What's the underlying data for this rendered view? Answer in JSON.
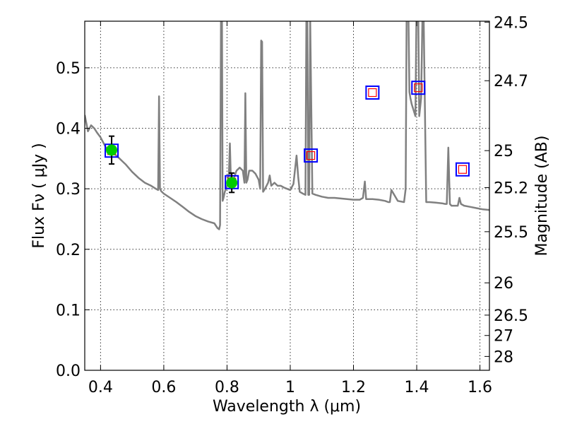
{
  "chart_data": {
    "type": "line",
    "xlabel": "Wavelength  λ (μm)",
    "ylabel": "Flux  Fν  ( μJy )",
    "y2label": "Magnitude (AB)",
    "xlim": [
      0.35,
      1.63
    ],
    "ylim": [
      0.0,
      0.577
    ],
    "grid": true,
    "x_ticks": [
      {
        "value": 0.4,
        "label": "0.4"
      },
      {
        "value": 0.6,
        "label": "0.6"
      },
      {
        "value": 0.8,
        "label": "0.8"
      },
      {
        "value": 1.0,
        "label": "1"
      },
      {
        "value": 1.2,
        "label": "1.2"
      },
      {
        "value": 1.4,
        "label": "1.4"
      },
      {
        "value": 1.6,
        "label": "1.6"
      }
    ],
    "y_ticks": [
      {
        "value": 0.0,
        "label": "0.0"
      },
      {
        "value": 0.1,
        "label": "0.1"
      },
      {
        "value": 0.2,
        "label": "0.2"
      },
      {
        "value": 0.3,
        "label": "0.3"
      },
      {
        "value": 0.4,
        "label": "0.4"
      },
      {
        "value": 0.5,
        "label": "0.5"
      }
    ],
    "mag_ticks": [
      {
        "value": 24.5,
        "label": "24.5"
      },
      {
        "value": 24.7,
        "label": "24.7"
      },
      {
        "value": 25.0,
        "label": "25"
      },
      {
        "value": 25.2,
        "label": "25.2"
      },
      {
        "value": 25.5,
        "label": "25.5"
      },
      {
        "value": 26.0,
        "label": "26"
      },
      {
        "value": 26.5,
        "label": "26.5"
      },
      {
        "value": 27.0,
        "label": "27"
      },
      {
        "value": 28.0,
        "label": "28"
      }
    ],
    "colors": {
      "spectrum": "#808080",
      "model_box": "#0000ff",
      "model_inner": "#ff0000",
      "detection": "#00cc00",
      "errorbar": "#000000"
    },
    "spectrum": {
      "x": [
        0.35,
        0.36,
        0.37,
        0.38,
        0.39,
        0.4,
        0.41,
        0.42,
        0.43,
        0.44,
        0.45,
        0.46,
        0.47,
        0.48,
        0.5,
        0.52,
        0.54,
        0.56,
        0.575,
        0.582,
        0.585,
        0.588,
        0.592,
        0.6,
        0.62,
        0.64,
        0.66,
        0.68,
        0.7,
        0.72,
        0.74,
        0.76,
        0.77,
        0.775,
        0.778,
        0.781,
        0.784,
        0.786,
        0.789,
        0.793,
        0.8,
        0.806,
        0.809,
        0.812,
        0.815,
        0.82,
        0.83,
        0.84,
        0.85,
        0.855,
        0.858,
        0.861,
        0.865,
        0.87,
        0.88,
        0.89,
        0.9,
        0.905,
        0.908,
        0.911,
        0.914,
        0.92,
        0.93,
        0.935,
        0.94,
        0.95,
        0.96,
        0.97,
        0.98,
        0.99,
        1.0,
        1.01,
        1.02,
        1.025,
        1.03,
        1.04,
        1.048,
        1.051,
        1.054,
        1.057,
        1.06,
        1.063,
        1.07,
        1.08,
        1.1,
        1.12,
        1.14,
        1.16,
        1.18,
        1.2,
        1.22,
        1.23,
        1.236,
        1.24,
        1.26,
        1.28,
        1.3,
        1.31,
        1.315,
        1.32,
        1.34,
        1.36,
        1.365,
        1.368,
        1.371,
        1.374,
        1.377,
        1.38,
        1.384,
        1.39,
        1.396,
        1.399,
        1.402,
        1.405,
        1.408,
        1.414,
        1.418,
        1.422,
        1.43,
        1.44,
        1.46,
        1.48,
        1.49,
        1.495,
        1.5,
        1.505,
        1.51,
        1.53,
        1.535,
        1.54,
        1.55,
        1.57,
        1.59,
        1.61,
        1.63
      ],
      "y": [
        0.422,
        0.395,
        0.405,
        0.4,
        0.392,
        0.385,
        0.375,
        0.365,
        0.36,
        0.358,
        0.355,
        0.35,
        0.345,
        0.34,
        0.328,
        0.318,
        0.31,
        0.305,
        0.3,
        0.298,
        0.453,
        0.3,
        0.296,
        0.292,
        0.285,
        0.278,
        0.27,
        0.262,
        0.255,
        0.25,
        0.246,
        0.243,
        0.235,
        0.233,
        0.24,
        0.58,
        0.58,
        0.28,
        0.285,
        0.295,
        0.305,
        0.325,
        0.375,
        0.32,
        0.31,
        0.315,
        0.33,
        0.335,
        0.33,
        0.31,
        0.458,
        0.31,
        0.315,
        0.33,
        0.33,
        0.325,
        0.315,
        0.3,
        0.545,
        0.543,
        0.295,
        0.3,
        0.31,
        0.322,
        0.305,
        0.31,
        0.305,
        0.305,
        0.302,
        0.3,
        0.298,
        0.308,
        0.355,
        0.32,
        0.295,
        0.292,
        0.29,
        0.58,
        0.58,
        0.29,
        0.29,
        0.58,
        0.292,
        0.29,
        0.287,
        0.285,
        0.285,
        0.284,
        0.283,
        0.282,
        0.282,
        0.285,
        0.312,
        0.283,
        0.283,
        0.282,
        0.28,
        0.278,
        0.278,
        0.298,
        0.28,
        0.278,
        0.3,
        0.58,
        0.58,
        0.58,
        0.46,
        0.45,
        0.44,
        0.43,
        0.42,
        0.58,
        0.58,
        0.58,
        0.42,
        0.45,
        0.58,
        0.58,
        0.278,
        0.278,
        0.277,
        0.276,
        0.275,
        0.275,
        0.368,
        0.275,
        0.272,
        0.272,
        0.285,
        0.275,
        0.272,
        0.27,
        0.268,
        0.266,
        0.265
      ]
    },
    "model_points": {
      "x": [
        0.435,
        0.815,
        1.065,
        1.26,
        1.405,
        1.545
      ],
      "y": [
        0.363,
        0.311,
        0.355,
        0.459,
        0.467,
        0.332
      ]
    },
    "detections": {
      "x": [
        0.435,
        0.815
      ],
      "y": [
        0.364,
        0.31
      ],
      "yerr": [
        0.023,
        0.016
      ]
    }
  }
}
